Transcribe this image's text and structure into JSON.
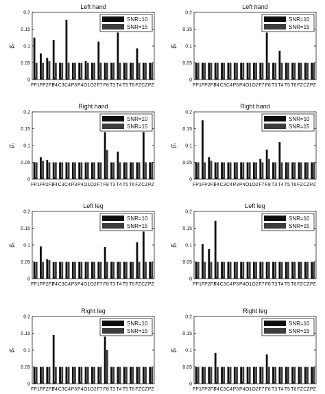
{
  "chart_data": [
    {
      "type": "bar",
      "title": "Left hand",
      "ylabel": "β̂₁",
      "ylim": [
        0,
        0.2
      ],
      "yticks": [
        "0",
        "0.05",
        "0.1",
        "0.15",
        "0.2"
      ],
      "categories": [
        "FP1",
        "FP2",
        "F3",
        "F4",
        "C3",
        "C4",
        "P3",
        "P4",
        "O1",
        "O2",
        "F7",
        "F8",
        "T3",
        "T4",
        "T5",
        "T6",
        "FZ",
        "CZ",
        "PZ"
      ],
      "series": [
        {
          "name": "SNR=10",
          "values": [
            0.125,
            0.078,
            0.065,
            0.118,
            0.05,
            0.178,
            0.05,
            0.05,
            0.055,
            0.05,
            0.113,
            0.05,
            0.05,
            0.14,
            0.05,
            0.05,
            0.093,
            0.05,
            0.05
          ]
        },
        {
          "name": "SNR=15",
          "values": [
            0.05,
            0.05,
            0.055,
            0.05,
            0.05,
            0.05,
            0.05,
            0.05,
            0.05,
            0.05,
            0.05,
            0.05,
            0.05,
            0.05,
            0.05,
            0.05,
            0.05,
            0.05,
            0.05
          ]
        }
      ],
      "legend": "top-right"
    },
    {
      "type": "bar",
      "title": "Left hand",
      "ylabel": "β̂₁",
      "ylim": [
        0,
        0.2
      ],
      "yticks": [
        "0",
        "0.05",
        "0.1",
        "0.15",
        "0.2"
      ],
      "categories": [
        "FP1",
        "FP2",
        "F3",
        "F4",
        "C3",
        "C4",
        "P3",
        "P4",
        "O1",
        "O2",
        "F7",
        "F8",
        "T3",
        "T4",
        "T5",
        "T6",
        "FZ",
        "CZ",
        "PZ"
      ],
      "series": [
        {
          "name": "SNR=10",
          "values": [
            0.05,
            0.05,
            0.05,
            0.05,
            0.05,
            0.05,
            0.05,
            0.05,
            0.05,
            0.05,
            0.05,
            0.14,
            0.05,
            0.086,
            0.05,
            0.05,
            0.05,
            0.05,
            0.05
          ]
        },
        {
          "name": "SNR=15",
          "values": [
            0.05,
            0.05,
            0.05,
            0.05,
            0.05,
            0.05,
            0.05,
            0.05,
            0.05,
            0.05,
            0.05,
            0.05,
            0.05,
            0.05,
            0.05,
            0.05,
            0.05,
            0.05,
            0.05
          ]
        }
      ],
      "legend": "top-right"
    },
    {
      "type": "bar",
      "title": "Right hand",
      "ylabel": "β̂₁",
      "ylim": [
        0,
        0.2
      ],
      "yticks": [
        "0",
        "0.05",
        "0.1",
        "0.15",
        "0.2"
      ],
      "categories": [
        "FP1",
        "FP2",
        "F3",
        "F4",
        "C3",
        "C4",
        "P3",
        "P4",
        "O1",
        "O2",
        "F7",
        "F8",
        "T3",
        "T4",
        "T5",
        "T6",
        "FZ",
        "CZ",
        "PZ"
      ],
      "series": [
        {
          "name": "SNR=10",
          "values": [
            0.05,
            0.065,
            0.057,
            0.05,
            0.05,
            0.05,
            0.05,
            0.05,
            0.05,
            0.05,
            0.05,
            0.14,
            0.05,
            0.082,
            0.05,
            0.05,
            0.05,
            0.14,
            0.05
          ]
        },
        {
          "name": "SNR=15",
          "values": [
            0.05,
            0.055,
            0.05,
            0.05,
            0.05,
            0.05,
            0.05,
            0.05,
            0.05,
            0.05,
            0.05,
            0.087,
            0.05,
            0.05,
            0.05,
            0.05,
            0.05,
            0.05,
            0.05
          ]
        }
      ],
      "legend": "top-right"
    },
    {
      "type": "bar",
      "title": "Right hand",
      "ylabel": "β̂₁",
      "ylim": [
        0,
        0.2
      ],
      "yticks": [
        "0",
        "0.05",
        "0.1",
        "0.15",
        "0.2"
      ],
      "categories": [
        "FP1",
        "FP2",
        "F3",
        "F4",
        "C3",
        "C4",
        "P3",
        "P4",
        "O1",
        "O2",
        "F7",
        "F8",
        "T3",
        "T4",
        "T5",
        "T6",
        "FZ",
        "CZ",
        "PZ"
      ],
      "series": [
        {
          "name": "SNR=10",
          "values": [
            0.05,
            0.175,
            0.065,
            0.05,
            0.05,
            0.05,
            0.05,
            0.05,
            0.05,
            0.05,
            0.06,
            0.088,
            0.05,
            0.11,
            0.05,
            0.05,
            0.05,
            0.05,
            0.05
          ]
        },
        {
          "name": "SNR=15",
          "values": [
            0.05,
            0.05,
            0.055,
            0.05,
            0.05,
            0.05,
            0.05,
            0.05,
            0.05,
            0.05,
            0.05,
            0.06,
            0.05,
            0.05,
            0.05,
            0.05,
            0.05,
            0.05,
            0.05
          ]
        }
      ],
      "legend": "top-right"
    },
    {
      "type": "bar",
      "title": "Left leg",
      "ylabel": "β̂₁",
      "ylim": [
        0,
        0.2
      ],
      "yticks": [
        "0",
        "0.05",
        "0.1",
        "0.15",
        "0.2"
      ],
      "categories": [
        "FP1",
        "FP2",
        "F3",
        "F4",
        "C3",
        "C4",
        "P3",
        "P4",
        "O1",
        "O2",
        "F7",
        "F8",
        "T3",
        "T4",
        "T5",
        "T6",
        "FZ",
        "CZ",
        "PZ"
      ],
      "series": [
        {
          "name": "SNR=10",
          "values": [
            0.05,
            0.096,
            0.058,
            0.05,
            0.05,
            0.05,
            0.05,
            0.05,
            0.05,
            0.05,
            0.05,
            0.094,
            0.05,
            0.05,
            0.05,
            0.05,
            0.108,
            0.14,
            0.05
          ]
        },
        {
          "name": "SNR=15",
          "values": [
            0.05,
            0.05,
            0.055,
            0.05,
            0.05,
            0.05,
            0.05,
            0.05,
            0.05,
            0.05,
            0.05,
            0.05,
            0.05,
            0.05,
            0.05,
            0.05,
            0.05,
            0.05,
            0.05
          ]
        }
      ],
      "legend": "top-right"
    },
    {
      "type": "bar",
      "title": "Left leg",
      "ylabel": "β̂₁",
      "ylim": [
        0,
        0.2
      ],
      "yticks": [
        "0",
        "0.05",
        "0.1",
        "0.15",
        "0.2"
      ],
      "categories": [
        "FP1",
        "FP2",
        "F3",
        "F4",
        "C3",
        "C4",
        "P3",
        "P4",
        "O1",
        "O2",
        "F7",
        "F8",
        "T3",
        "T4",
        "T5",
        "T6",
        "FZ",
        "CZ",
        "PZ"
      ],
      "series": [
        {
          "name": "SNR=10",
          "values": [
            0.05,
            0.103,
            0.088,
            0.172,
            0.05,
            0.05,
            0.05,
            0.05,
            0.05,
            0.05,
            0.05,
            0.05,
            0.05,
            0.05,
            0.05,
            0.05,
            0.05,
            0.05,
            0.05
          ]
        },
        {
          "name": "SNR=15",
          "values": [
            0.05,
            0.05,
            0.05,
            0.05,
            0.05,
            0.05,
            0.05,
            0.05,
            0.05,
            0.05,
            0.05,
            0.05,
            0.05,
            0.05,
            0.05,
            0.05,
            0.05,
            0.05,
            0.05
          ]
        }
      ],
      "legend": "top-right"
    },
    {
      "type": "bar",
      "title": "Right leg",
      "ylabel": "β̂₁",
      "ylim": [
        0,
        0.2
      ],
      "yticks": [
        "0",
        "0.05",
        "0.1",
        "0.15",
        "0.2"
      ],
      "categories": [
        "FP1",
        "FP2",
        "F3",
        "F4",
        "C3",
        "C4",
        "P3",
        "P4",
        "O1",
        "O2",
        "F7",
        "F8",
        "T3",
        "T4",
        "T5",
        "T6",
        "FZ",
        "CZ",
        "PZ"
      ],
      "series": [
        {
          "name": "SNR=10",
          "values": [
            0.05,
            0.05,
            0.05,
            0.145,
            0.05,
            0.05,
            0.05,
            0.05,
            0.05,
            0.05,
            0.05,
            0.14,
            0.05,
            0.05,
            0.05,
            0.05,
            0.05,
            0.05,
            0.05
          ]
        },
        {
          "name": "SNR=15",
          "values": [
            0.05,
            0.05,
            0.05,
            0.05,
            0.05,
            0.05,
            0.05,
            0.05,
            0.05,
            0.05,
            0.05,
            0.1,
            0.05,
            0.05,
            0.05,
            0.05,
            0.05,
            0.05,
            0.05
          ]
        }
      ],
      "legend": "top-right"
    },
    {
      "type": "bar",
      "title": "Right leg",
      "ylabel": "β̂₁",
      "ylim": [
        0,
        0.2
      ],
      "yticks": [
        "0",
        "0.05",
        "0.1",
        "0.15",
        "0.2"
      ],
      "categories": [
        "FP1",
        "FP2",
        "F3",
        "F4",
        "C3",
        "C4",
        "P3",
        "P4",
        "O1",
        "O2",
        "F7",
        "F8",
        "T3",
        "T4",
        "T5",
        "T6",
        "FZ",
        "CZ",
        "PZ"
      ],
      "series": [
        {
          "name": "SNR=10",
          "values": [
            0.05,
            0.05,
            0.05,
            0.092,
            0.05,
            0.05,
            0.05,
            0.05,
            0.05,
            0.05,
            0.05,
            0.087,
            0.05,
            0.05,
            0.05,
            0.05,
            0.05,
            0.05,
            0.05
          ]
        },
        {
          "name": "SNR=15",
          "values": [
            0.05,
            0.05,
            0.05,
            0.05,
            0.05,
            0.05,
            0.05,
            0.05,
            0.05,
            0.05,
            0.05,
            0.05,
            0.05,
            0.05,
            0.05,
            0.05,
            0.05,
            0.05,
            0.05
          ]
        }
      ],
      "legend": "top-right"
    }
  ],
  "colors": {
    "snr10": "#0d0d0d",
    "snr15": "#3c3c3c",
    "axis": "#222222"
  }
}
